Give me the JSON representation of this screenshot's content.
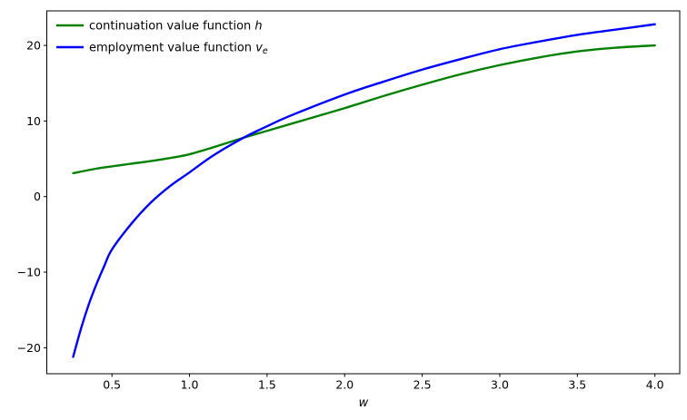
{
  "chart_data": {
    "type": "line",
    "title": "",
    "xlabel": "w",
    "ylabel": "",
    "grid": false,
    "legend_position": "upper-left",
    "xlim": [
      0.08,
      4.16
    ],
    "ylim": [
      -23.44,
      24.57
    ],
    "x_ticks": {
      "values": [
        0.5,
        1.0,
        1.5,
        2.0,
        2.5,
        3.0,
        3.5,
        4.0
      ],
      "labels": [
        "0.5",
        "1.0",
        "1.5",
        "2.0",
        "2.5",
        "3.0",
        "3.5",
        "4.0"
      ]
    },
    "y_ticks": {
      "values": [
        -20,
        -10,
        0,
        10,
        20
      ],
      "labels": [
        "−20",
        "−10",
        "0",
        "10",
        "20"
      ]
    },
    "series": [
      {
        "name": "continuation value function h",
        "color": "#008000",
        "points": [
          [
            0.25,
            3.1
          ],
          [
            0.4,
            3.7
          ],
          [
            0.5,
            4.0
          ],
          [
            0.625,
            4.35
          ],
          [
            0.75,
            4.7
          ],
          [
            0.875,
            5.1
          ],
          [
            1.0,
            5.6
          ],
          [
            1.15,
            6.5
          ],
          [
            1.35,
            7.8
          ],
          [
            1.5,
            8.7
          ],
          [
            1.75,
            10.2
          ],
          [
            2.0,
            11.7
          ],
          [
            2.25,
            13.3
          ],
          [
            2.5,
            14.8
          ],
          [
            2.75,
            16.2
          ],
          [
            3.0,
            17.4
          ],
          [
            3.25,
            18.4
          ],
          [
            3.5,
            19.2
          ],
          [
            3.75,
            19.7
          ],
          [
            4.0,
            20.0
          ]
        ]
      },
      {
        "name": "employment value function v_e",
        "color": "#0000ff",
        "points": [
          [
            0.25,
            -21.2
          ],
          [
            0.3,
            -17.5
          ],
          [
            0.35,
            -14.3
          ],
          [
            0.4,
            -11.6
          ],
          [
            0.45,
            -9.2
          ],
          [
            0.5,
            -7.0
          ],
          [
            0.625,
            -3.6
          ],
          [
            0.75,
            -0.8
          ],
          [
            0.875,
            1.4
          ],
          [
            1.0,
            3.2
          ],
          [
            1.15,
            5.4
          ],
          [
            1.35,
            7.8
          ],
          [
            1.5,
            9.3
          ],
          [
            1.65,
            10.7
          ],
          [
            2.0,
            13.5
          ],
          [
            2.25,
            15.2
          ],
          [
            2.5,
            16.8
          ],
          [
            2.75,
            18.2
          ],
          [
            3.0,
            19.5
          ],
          [
            3.25,
            20.5
          ],
          [
            3.5,
            21.4
          ],
          [
            3.75,
            22.1
          ],
          [
            4.0,
            22.8
          ]
        ]
      }
    ],
    "legend": [
      {
        "prefix": "continuation value function ",
        "var": "h",
        "sub": ""
      },
      {
        "prefix": "employment value function ",
        "var": "v",
        "sub": "e"
      }
    ],
    "crossing_point": {
      "w": 1.35,
      "value": 7.8
    }
  }
}
